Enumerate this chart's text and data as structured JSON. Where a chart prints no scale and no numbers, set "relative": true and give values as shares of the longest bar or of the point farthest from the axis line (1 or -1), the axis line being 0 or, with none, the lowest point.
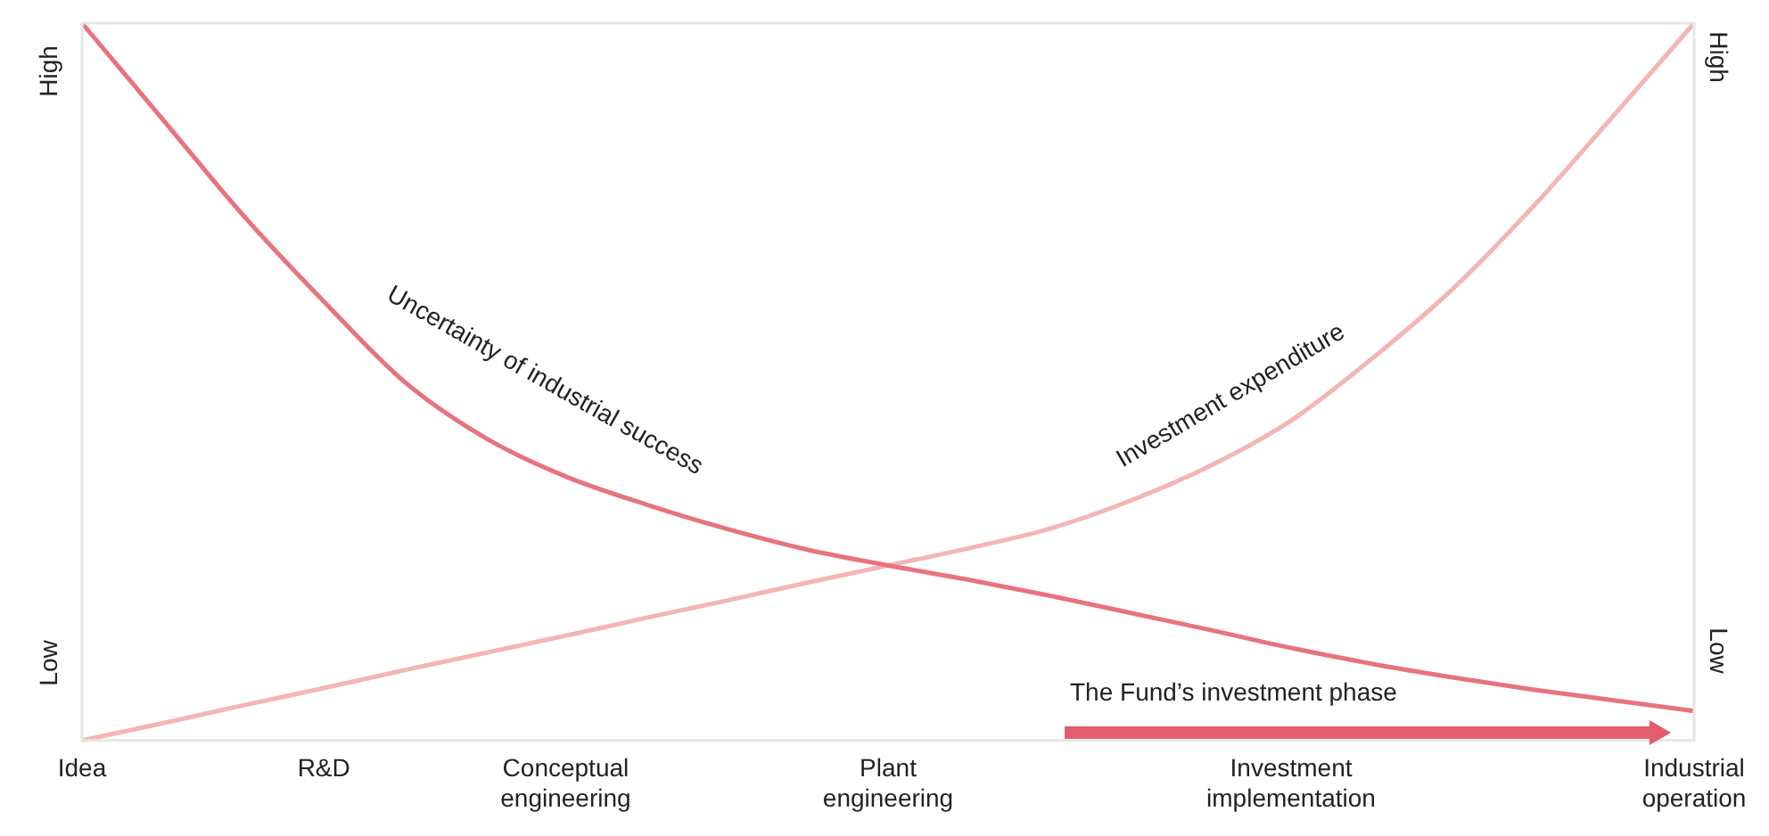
{
  "chart_data": {
    "type": "line",
    "relative": true,
    "legend": false,
    "grid": false,
    "marker": "none",
    "line_style": "solid",
    "categories": [
      "Idea",
      null,
      null,
      "R&D",
      null,
      null,
      "Conceptual engineering",
      null,
      null,
      null,
      "Plant engineering",
      null,
      null,
      null,
      null,
      "Investment implementation",
      null,
      null,
      null,
      null,
      "Industrial operation"
    ],
    "series": [
      {
        "name": "Uncertainty of industrial success",
        "color": "#e8737d",
        "values": [
          1.0,
          0.866,
          0.732,
          0.612,
          0.5,
          0.422,
          0.368,
          0.329,
          0.295,
          0.266,
          0.244,
          0.224,
          0.202,
          0.178,
          0.154,
          0.129,
          0.107,
          0.088,
          0.071,
          0.056,
          0.041
        ]
      },
      {
        "name": "Investment expenditure",
        "color": "#f4b5b5",
        "values": [
          0,
          0.024,
          0.049,
          0.073,
          0.098,
          0.122,
          0.146,
          0.171,
          0.195,
          0.22,
          0.244,
          0.268,
          0.295,
          0.334,
          0.383,
          0.446,
          0.532,
          0.629,
          0.744,
          0.871,
          1.0
        ]
      }
    ],
    "annotations": [
      "High",
      "Low",
      "High",
      "Low",
      "The Fund’s investment phase"
    ]
  }
}
